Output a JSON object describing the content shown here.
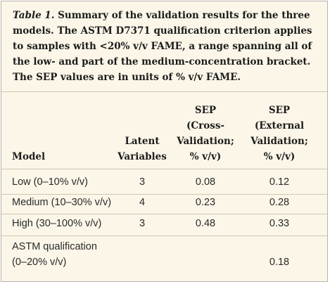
{
  "caption": {
    "label": "Table 1.",
    "text": " Summary of the validation results for the three models. The ASTM D7371 qualification criterion applies to samples with <20% v/v FAME, a range spanning all of the low- and part of the medium-concentration bracket. The SEP values are in units of % v/v FAME."
  },
  "table": {
    "headers": {
      "model": "Model",
      "latent_line1": "Latent",
      "latent_line2": "Variables",
      "sep_cv_line1": "SEP",
      "sep_cv_line2": "(Cross-",
      "sep_cv_line3": "Validation;",
      "sep_cv_line4": "% v/v)",
      "sep_ext_line1": "SEP",
      "sep_ext_line2": "(External",
      "sep_ext_line3": "Validation;",
      "sep_ext_line4": "% v/v)"
    },
    "rows": [
      {
        "model": "Low (0–10% v/v)",
        "latent": "3",
        "sep_cv": "0.08",
        "sep_ext": "0.12"
      },
      {
        "model": "Medium (10–30% v/v)",
        "latent": "4",
        "sep_cv": "0.23",
        "sep_ext": "0.28"
      },
      {
        "model": "High (30–100% v/v)",
        "latent": "3",
        "sep_cv": "0.48",
        "sep_ext": "0.33"
      }
    ],
    "astm_row": {
      "model_line1": "ASTM qualification",
      "model_line2": "(0–20% v/v)",
      "latent": "",
      "sep_cv": "",
      "sep_ext": "0.18"
    }
  }
}
